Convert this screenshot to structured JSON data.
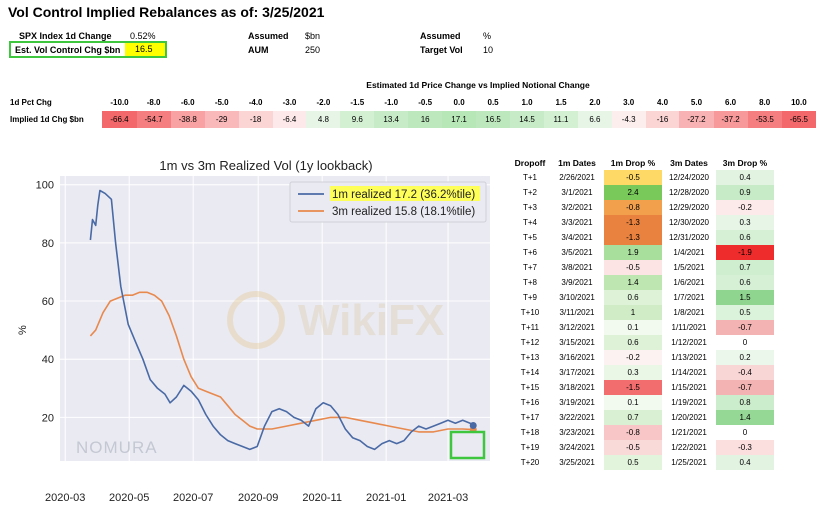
{
  "title": "Vol Control Implied Rebalances as of: 3/25/2021",
  "summary": {
    "spx_label": "SPX Index 1d Change",
    "spx_value": "0.52%",
    "est_label": "Est. Vol Control Chg $bn",
    "est_value": "16.5",
    "assumed1_label": "Assumed",
    "assumed1_unit": "$bn",
    "aum_label": "AUM",
    "aum_value": "250",
    "assumed2_label": "Assumed",
    "assumed2_unit": "%",
    "target_label": "Target Vol",
    "target_value": "10"
  },
  "price_table": {
    "header": "Estimated 1d Price Change vs Implied Notional Change",
    "row1_label": "1d Pct Chg",
    "row2_label": "Implied 1d Chg $bn",
    "pct": [
      "-10.0",
      "-8.0",
      "-6.0",
      "-5.0",
      "-4.0",
      "-3.0",
      "-2.0",
      "-1.5",
      "-1.0",
      "-0.5",
      "0.0",
      "0.5",
      "1.0",
      "1.5",
      "2.0",
      "3.0",
      "4.0",
      "5.0",
      "6.0",
      "8.0",
      "10.0"
    ],
    "implied": [
      "-66.4",
      "-54.7",
      "-38.8",
      "-29",
      "-18",
      "-6.4",
      "4.8",
      "9.6",
      "13.4",
      "16",
      "17.1",
      "16.5",
      "14.5",
      "11.1",
      "6.6",
      "-4.3",
      "-16",
      "-27.2",
      "-37.2",
      "-53.5",
      "-65.5"
    ],
    "implied_colors": [
      "#f3696b",
      "#f57f80",
      "#f8a2a3",
      "#f9b9ba",
      "#fbd4d4",
      "#fde9e9",
      "#e6f5e6",
      "#d3f0d3",
      "#c6ebc6",
      "#bde8bd",
      "#b7e6b7",
      "#bde8bd",
      "#c6ebc6",
      "#d3f0d3",
      "#e6f5e6",
      "#fdeeee",
      "#fbd4d4",
      "#f9b2b3",
      "#f7999a",
      "#f57f80",
      "#f3696b"
    ]
  },
  "chart_data": {
    "type": "line",
    "title": "1m vs 3m Realized Vol (1y lookback)",
    "ylabel": "%",
    "xlabel": "",
    "ylim": [
      5,
      103
    ],
    "yticks": [
      "20",
      "40",
      "60",
      "80",
      "100"
    ],
    "xticks": [
      "2020-03",
      "2020-05",
      "2020-07",
      "2020-09",
      "2020-11",
      "2021-01",
      "2021-03"
    ],
    "watermark": "NOMURA",
    "legend_position": "top-right",
    "series": [
      {
        "name": "1m realized 17.2 (36.2%tile)",
        "color": "#4a6aa5",
        "highlight": "#ffff5a",
        "points": [
          [
            "2020-03-25",
            81
          ],
          [
            "2020-03-27",
            88
          ],
          [
            "2020-03-30",
            86
          ],
          [
            "2020-04-01",
            93
          ],
          [
            "2020-04-03",
            98
          ],
          [
            "2020-04-08",
            97
          ],
          [
            "2020-04-14",
            95
          ],
          [
            "2020-04-18",
            80
          ],
          [
            "2020-04-23",
            65
          ],
          [
            "2020-04-30",
            52
          ],
          [
            "2020-05-07",
            46
          ],
          [
            "2020-05-14",
            40
          ],
          [
            "2020-05-21",
            33
          ],
          [
            "2020-05-28",
            30
          ],
          [
            "2020-06-04",
            28
          ],
          [
            "2020-06-09",
            25
          ],
          [
            "2020-06-15",
            27
          ],
          [
            "2020-06-22",
            31
          ],
          [
            "2020-06-29",
            29
          ],
          [
            "2020-07-06",
            26
          ],
          [
            "2020-07-13",
            21
          ],
          [
            "2020-07-20",
            17
          ],
          [
            "2020-07-27",
            14
          ],
          [
            "2020-08-03",
            12
          ],
          [
            "2020-08-10",
            11
          ],
          [
            "2020-08-17",
            10
          ],
          [
            "2020-08-24",
            9
          ],
          [
            "2020-08-31",
            10
          ],
          [
            "2020-09-07",
            17
          ],
          [
            "2020-09-14",
            22
          ],
          [
            "2020-09-21",
            23
          ],
          [
            "2020-09-28",
            22
          ],
          [
            "2020-10-05",
            20
          ],
          [
            "2020-10-12",
            19
          ],
          [
            "2020-10-19",
            17
          ],
          [
            "2020-10-26",
            23
          ],
          [
            "2020-11-02",
            25
          ],
          [
            "2020-11-09",
            24
          ],
          [
            "2020-11-16",
            21
          ],
          [
            "2020-11-23",
            16
          ],
          [
            "2020-11-30",
            13
          ],
          [
            "2020-12-07",
            12
          ],
          [
            "2020-12-14",
            10
          ],
          [
            "2020-12-21",
            9
          ],
          [
            "2020-12-28",
            11
          ],
          [
            "2021-01-04",
            12
          ],
          [
            "2021-01-11",
            11
          ],
          [
            "2021-01-18",
            12
          ],
          [
            "2021-01-25",
            15
          ],
          [
            "2021-02-01",
            17
          ],
          [
            "2021-02-08",
            16
          ],
          [
            "2021-02-15",
            17
          ],
          [
            "2021-02-22",
            18
          ],
          [
            "2021-03-01",
            19
          ],
          [
            "2021-03-08",
            18
          ],
          [
            "2021-03-15",
            19
          ],
          [
            "2021-03-22",
            18
          ],
          [
            "2021-03-25",
            17.2
          ]
        ]
      },
      {
        "name": "3m realized 15.8 (18.1%tile)",
        "color": "#e8894e",
        "highlight": "",
        "points": [
          [
            "2020-03-25",
            48
          ],
          [
            "2020-03-30",
            50
          ],
          [
            "2020-04-06",
            56
          ],
          [
            "2020-04-13",
            60
          ],
          [
            "2020-04-20",
            61
          ],
          [
            "2020-04-27",
            62
          ],
          [
            "2020-05-04",
            62
          ],
          [
            "2020-05-11",
            63
          ],
          [
            "2020-05-18",
            63
          ],
          [
            "2020-05-25",
            62
          ],
          [
            "2020-06-01",
            60
          ],
          [
            "2020-06-08",
            55
          ],
          [
            "2020-06-15",
            48
          ],
          [
            "2020-06-22",
            40
          ],
          [
            "2020-06-29",
            34
          ],
          [
            "2020-07-06",
            30
          ],
          [
            "2020-07-13",
            29
          ],
          [
            "2020-07-20",
            28
          ],
          [
            "2020-07-27",
            27
          ],
          [
            "2020-08-03",
            24
          ],
          [
            "2020-08-10",
            21
          ],
          [
            "2020-08-17",
            19
          ],
          [
            "2020-08-24",
            17
          ],
          [
            "2020-08-31",
            16
          ],
          [
            "2020-09-14",
            16
          ],
          [
            "2020-09-28",
            17
          ],
          [
            "2020-10-12",
            18
          ],
          [
            "2020-10-26",
            19
          ],
          [
            "2020-11-09",
            20
          ],
          [
            "2020-11-23",
            20
          ],
          [
            "2020-12-07",
            19
          ],
          [
            "2020-12-21",
            18
          ],
          [
            "2021-01-04",
            17
          ],
          [
            "2021-01-18",
            16
          ],
          [
            "2021-02-01",
            15
          ],
          [
            "2021-02-15",
            15
          ],
          [
            "2021-03-01",
            16
          ],
          [
            "2021-03-15",
            16
          ],
          [
            "2021-03-25",
            15.8
          ]
        ]
      }
    ]
  },
  "dropoff_table": {
    "headers": [
      "Dropoff",
      "1m Dates",
      "1m Drop %",
      "3m Dates",
      "3m Drop %"
    ],
    "rows": [
      {
        "t": "T+1",
        "d1": "2/26/2021",
        "v1": "-0.5",
        "c1": "#ffd966",
        "d3": "12/24/2020",
        "v3": "0.4",
        "c3": "#e2f3e2"
      },
      {
        "t": "T+2",
        "d1": "3/1/2021",
        "v1": "2.4",
        "c1": "#78c95a",
        "d3": "12/28/2020",
        "v3": "0.9",
        "c3": "#c7ebc7"
      },
      {
        "t": "T+3",
        "d1": "3/2/2021",
        "v1": "-0.8",
        "c1": "#f2a04c",
        "d3": "12/29/2020",
        "v3": "-0.2",
        "c3": "#fce9e9"
      },
      {
        "t": "T+4",
        "d1": "3/3/2021",
        "v1": "-1.3",
        "c1": "#e9823f",
        "d3": "12/30/2020",
        "v3": "0.3",
        "c3": "#e6f5e6"
      },
      {
        "t": "T+5",
        "d1": "3/4/2021",
        "v1": "-1.3",
        "c1": "#e9823f",
        "d3": "12/31/2020",
        "v3": "0.6",
        "c3": "#d6f0d6"
      },
      {
        "t": "T+6",
        "d1": "3/5/2021",
        "v1": "1.9",
        "c1": "#a9df9c",
        "d3": "1/4/2021",
        "v3": "-1.9",
        "c3": "#ee2c2c"
      },
      {
        "t": "T+7",
        "d1": "3/8/2021",
        "v1": "-0.5",
        "c1": "#fce4e4",
        "d3": "1/5/2021",
        "v3": "0.7",
        "c3": "#cfeecf"
      },
      {
        "t": "T+8",
        "d1": "3/9/2021",
        "v1": "1.4",
        "c1": "#bde6b1",
        "d3": "1/6/2021",
        "v3": "0.6",
        "c3": "#d6f0d6"
      },
      {
        "t": "T+9",
        "d1": "3/10/2021",
        "v1": "0.6",
        "c1": "#def2d8",
        "d3": "1/7/2021",
        "v3": "1.5",
        "c3": "#8fd58f"
      },
      {
        "t": "T+10",
        "d1": "3/11/2021",
        "v1": "1",
        "c1": "#cfecc6",
        "d3": "1/8/2021",
        "v3": "0.5",
        "c3": "#dbf2db"
      },
      {
        "t": "T+11",
        "d1": "3/12/2021",
        "v1": "0.1",
        "c1": "#f2faf0",
        "d3": "1/11/2021",
        "v3": "-0.7",
        "c3": "#f4b3b3"
      },
      {
        "t": "T+12",
        "d1": "3/15/2021",
        "v1": "0.6",
        "c1": "#def2d8",
        "d3": "1/12/2021",
        "v3": "0",
        "c3": "#ffffff"
      },
      {
        "t": "T+13",
        "d1": "3/16/2021",
        "v1": "-0.2",
        "c1": "#fdf2f2",
        "d3": "1/13/2021",
        "v3": "0.2",
        "c3": "#ecf7ec"
      },
      {
        "t": "T+14",
        "d1": "3/17/2021",
        "v1": "0.3",
        "c1": "#eaf7e6",
        "d3": "1/14/2021",
        "v3": "-0.4",
        "c3": "#f9d6d6"
      },
      {
        "t": "T+15",
        "d1": "3/18/2021",
        "v1": "-1.5",
        "c1": "#f26d6d",
        "d3": "1/15/2021",
        "v3": "-0.7",
        "c3": "#f4b3b3"
      },
      {
        "t": "T+16",
        "d1": "3/19/2021",
        "v1": "0.1",
        "c1": "#f2faf0",
        "d3": "1/19/2021",
        "v3": "0.8",
        "c3": "#cbedcb"
      },
      {
        "t": "T+17",
        "d1": "3/22/2021",
        "v1": "0.7",
        "c1": "#d9f0d2",
        "d3": "1/20/2021",
        "v3": "1.4",
        "c3": "#95d895"
      },
      {
        "t": "T+18",
        "d1": "3/23/2021",
        "v1": "-0.8",
        "c1": "#f8c6c6",
        "d3": "1/21/2021",
        "v3": "0",
        "c3": "#ffffff"
      },
      {
        "t": "T+19",
        "d1": "3/24/2021",
        "v1": "-0.5",
        "c1": "#fad9d9",
        "d3": "1/22/2021",
        "v3": "-0.3",
        "c3": "#fbdfdf"
      },
      {
        "t": "T+20",
        "d1": "3/25/2021",
        "v1": "0.5",
        "c1": "#e2f4dc",
        "d3": "1/25/2021",
        "v3": "0.4",
        "c3": "#e2f3e2"
      }
    ]
  }
}
